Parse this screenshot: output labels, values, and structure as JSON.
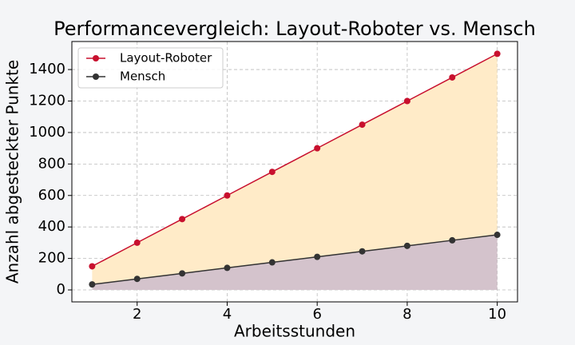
{
  "chart_data": {
    "type": "line",
    "title": "Performancevergleich: Layout-Roboter vs. Mensch",
    "xlabel": "Arbeitsstunden",
    "ylabel": "Anzahl abgesteckter Punkte",
    "x": [
      1,
      2,
      3,
      4,
      5,
      6,
      7,
      8,
      9,
      10
    ],
    "series": [
      {
        "name": "Layout-Roboter",
        "color": "#c8102e",
        "fill": "#ffebc8",
        "values": [
          150,
          300,
          450,
          600,
          750,
          900,
          1050,
          1200,
          1350,
          1500
        ]
      },
      {
        "name": "Mensch",
        "color": "#333333",
        "fill": "#d4c3cc",
        "values": [
          35,
          70,
          105,
          140,
          175,
          210,
          245,
          280,
          315,
          350
        ]
      }
    ],
    "xlim": [
      0.55,
      10.45
    ],
    "ylim": [
      -76,
      1578
    ],
    "xticks": [
      2,
      4,
      6,
      8,
      10
    ],
    "yticks": [
      0,
      200,
      400,
      600,
      800,
      1000,
      1200,
      1400
    ],
    "grid": true,
    "legend": "upper left"
  }
}
